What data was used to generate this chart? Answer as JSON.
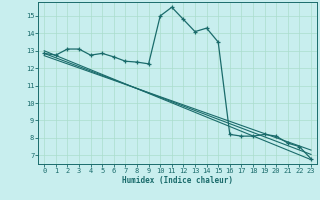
{
  "title": "",
  "xlabel": "Humidex (Indice chaleur)",
  "bg_color": "#c8eeee",
  "grid_color": "#aaddcc",
  "line_color": "#1a6b6b",
  "xlim": [
    -0.5,
    23.5
  ],
  "ylim": [
    6.5,
    15.8
  ],
  "xticks": [
    0,
    1,
    2,
    3,
    4,
    5,
    6,
    7,
    8,
    9,
    10,
    11,
    12,
    13,
    14,
    15,
    16,
    17,
    18,
    19,
    20,
    21,
    22,
    23
  ],
  "yticks": [
    7,
    8,
    9,
    10,
    11,
    12,
    13,
    14,
    15
  ],
  "curve1_x": [
    0,
    1,
    2,
    3,
    4,
    5,
    6,
    7,
    8,
    9,
    10,
    11,
    12,
    13,
    14,
    15,
    16,
    17,
    18,
    19,
    20,
    21,
    22,
    23
  ],
  "curve1_y": [
    12.85,
    12.75,
    13.1,
    13.1,
    12.75,
    12.85,
    12.65,
    12.4,
    12.35,
    12.25,
    15.0,
    15.5,
    14.8,
    14.1,
    14.3,
    13.5,
    8.2,
    8.1,
    8.1,
    8.2,
    8.1,
    7.7,
    7.5,
    6.8
  ],
  "line1_x": [
    0,
    23
  ],
  "line1_y": [
    13.0,
    6.75
  ],
  "line2_x": [
    0,
    23
  ],
  "line2_y": [
    12.85,
    7.05
  ],
  "line3_x": [
    0,
    23
  ],
  "line3_y": [
    12.72,
    7.3
  ]
}
